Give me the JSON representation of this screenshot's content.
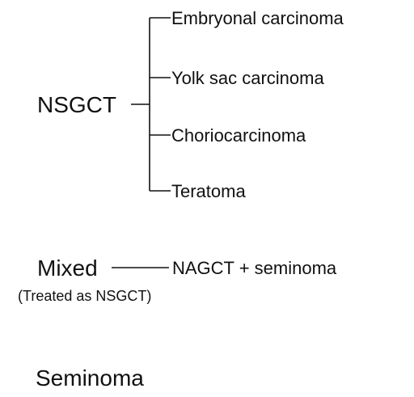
{
  "nsgct": {
    "label": "NSGCT",
    "subtypes": [
      "Embryonal carcinoma",
      "Yolk sac carcinoma",
      "Choriocarcinoma",
      "Teratoma"
    ]
  },
  "mixed": {
    "label": "Mixed",
    "note": "(Treated as NSGCT)",
    "composition": "NAGCT + seminoma"
  },
  "seminoma": {
    "label": "Seminoma"
  }
}
